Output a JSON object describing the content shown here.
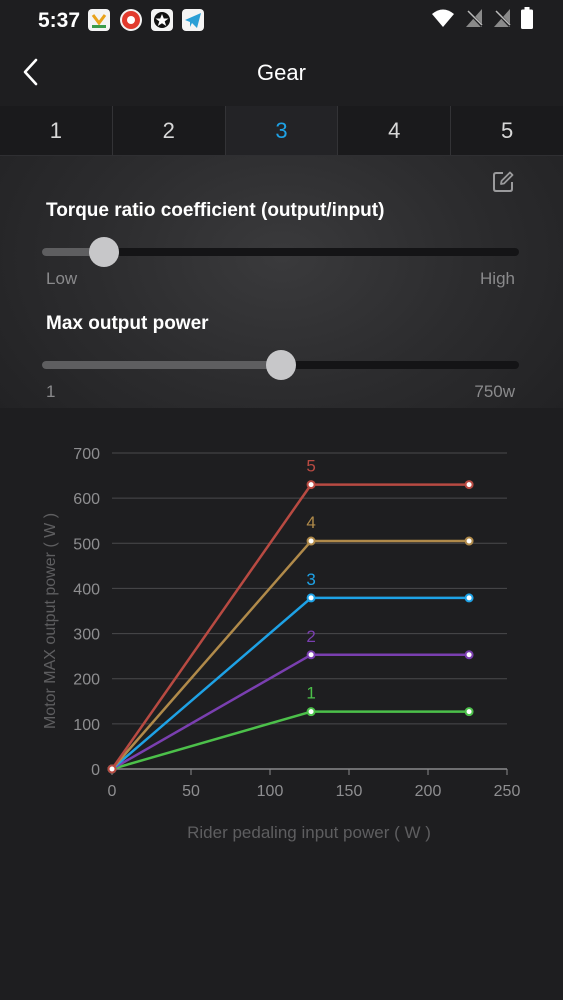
{
  "status_bar": {
    "time": "5:37"
  },
  "header": {
    "title": "Gear"
  },
  "tabs": [
    {
      "label": "1",
      "active": false
    },
    {
      "label": "2",
      "active": false
    },
    {
      "label": "3",
      "active": true
    },
    {
      "label": "4",
      "active": false
    },
    {
      "label": "5",
      "active": false
    }
  ],
  "torque": {
    "label": "Torque ratio coefficient (output/input)",
    "min_label": "Low",
    "max_label": "High",
    "level": 0.13
  },
  "power": {
    "label": "Max output power",
    "min_label": "1",
    "max_label": "750w",
    "level": 0.5
  },
  "colors": {
    "accent": "#1ea2e6",
    "gear1": "#4cc04a",
    "gear2": "#7a3fb0",
    "gear3": "#1ea2e6",
    "gear4": "#b08a4a",
    "gear5": "#b84a42"
  },
  "chart_data": {
    "type": "line",
    "xlabel": "Rider pedaling input power ( W )",
    "ylabel": "Motor MAX output power ( W )",
    "xlim": [
      0,
      250
    ],
    "ylim": [
      0,
      700
    ],
    "xticks": [
      "0",
      "50",
      "100",
      "150",
      "200",
      "250"
    ],
    "yticks": [
      "0",
      "100",
      "200",
      "300",
      "400",
      "500",
      "600",
      "700"
    ],
    "grid": "horizontal",
    "series": [
      {
        "name": "1",
        "color": "#4cc04a",
        "points": [
          [
            0,
            0
          ],
          [
            126,
            127
          ],
          [
            226,
            127
          ]
        ]
      },
      {
        "name": "2",
        "color": "#7a3fb0",
        "points": [
          [
            0,
            0
          ],
          [
            126,
            253
          ],
          [
            226,
            253
          ]
        ]
      },
      {
        "name": "3",
        "color": "#1ea2e6",
        "points": [
          [
            0,
            0
          ],
          [
            126,
            379
          ],
          [
            226,
            379
          ]
        ]
      },
      {
        "name": "4",
        "color": "#b08a4a",
        "points": [
          [
            0,
            0
          ],
          [
            126,
            505
          ],
          [
            226,
            505
          ]
        ]
      },
      {
        "name": "5",
        "color": "#b84a42",
        "points": [
          [
            0,
            0
          ],
          [
            126,
            630
          ],
          [
            226,
            630
          ]
        ]
      }
    ]
  }
}
